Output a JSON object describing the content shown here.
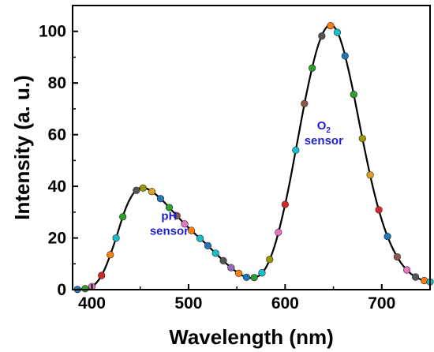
{
  "chart_data": {
    "type": "line",
    "xlabel": "Wavelength (nm)",
    "ylabel": "Intensity (a. u.)",
    "xlim": [
      380,
      750
    ],
    "ylim": [
      0,
      110
    ],
    "x_ticks": [
      400,
      500,
      600,
      700
    ],
    "y_ticks": [
      0,
      20,
      40,
      60,
      80,
      100
    ],
    "grid": false,
    "legend": "none",
    "line_color": "#000000",
    "annotations": [
      {
        "lines": [
          "pH",
          "sensor"
        ],
        "x": 480,
        "y": 27,
        "color": "#1f1fd0"
      },
      {
        "lines": [
          "O",
          "sensor"
        ],
        "subscript": "2",
        "x": 640,
        "y": 62,
        "color": "#1f1fd0"
      }
    ],
    "series": [
      {
        "x": [
          385,
          390,
          395,
          400,
          405,
          410,
          415,
          420,
          425,
          430,
          435,
          440,
          445,
          450,
          455,
          460,
          465,
          470,
          475,
          480,
          485,
          490,
          495,
          500,
          505,
          510,
          515,
          520,
          525,
          530,
          535,
          540,
          545,
          550,
          555,
          560,
          565,
          570,
          575,
          580,
          585,
          590,
          595,
          600,
          605,
          610,
          615,
          620,
          625,
          630,
          635,
          640,
          645,
          650,
          655,
          660,
          665,
          670,
          675,
          680,
          685,
          690,
          695,
          700,
          705,
          710,
          715,
          720,
          725,
          730,
          735,
          740,
          745,
          750
        ],
        "values": [
          0.1,
          0.2,
          0.5,
          1.2,
          2.8,
          5.5,
          9.5,
          14.5,
          20,
          26,
          31.5,
          35.5,
          38.2,
          39.4,
          39.3,
          38.5,
          37.2,
          35.6,
          33.8,
          31.8,
          29.8,
          27.8,
          25.8,
          24,
          22.2,
          20.5,
          18.8,
          17,
          15.2,
          13.4,
          11.6,
          9.8,
          8.2,
          6.8,
          5.6,
          4.8,
          4.5,
          4.8,
          6,
          8.5,
          12.5,
          18,
          25,
          33,
          42,
          52,
          62,
          72,
          81,
          89,
          95.5,
          100,
          102.3,
          102,
          99,
          93.5,
          86,
          77.5,
          68,
          58.5,
          49.5,
          41,
          33.5,
          27,
          21.5,
          17,
          13.3,
          10.3,
          8,
          6.2,
          4.9,
          4,
          3.4,
          3
        ]
      }
    ],
    "marker_x": [
      385,
      393,
      400,
      410,
      419,
      425,
      432,
      446,
      453,
      462,
      471,
      480,
      488,
      496,
      503,
      512,
      520,
      528,
      536,
      544,
      552,
      560,
      568,
      576,
      584,
      593,
      600,
      611,
      620,
      628,
      638,
      647,
      654,
      662,
      671,
      680,
      688,
      697,
      706,
      716,
      726,
      735,
      744,
      750
    ],
    "marker_colors": [
      "#1f77b4",
      "#2ca02c",
      "#e377c2",
      "#d62728",
      "#ff7f0e",
      "#17becf",
      "#2ca02c",
      "#555555",
      "#9a9a00",
      "#e0a020",
      "#1f77b4",
      "#2ca02c",
      "#8c564b",
      "#e377c2",
      "#ff7f0e",
      "#17becf",
      "#1f77b4",
      "#17becf",
      "#555555",
      "#9467bd",
      "#ff7f0e",
      "#1f77b4",
      "#2ca02c",
      "#17becf",
      "#9a9a00",
      "#e377c2",
      "#d62728",
      "#17becf",
      "#8c564b",
      "#2ca02c",
      "#555555",
      "#ff7f0e",
      "#17becf",
      "#1f77b4",
      "#2ca02c",
      "#9a9a00",
      "#e0a020",
      "#d62728",
      "#1f77b4",
      "#8c564b",
      "#e377c2",
      "#555555",
      "#ff7f0e",
      "#17becf"
    ]
  }
}
